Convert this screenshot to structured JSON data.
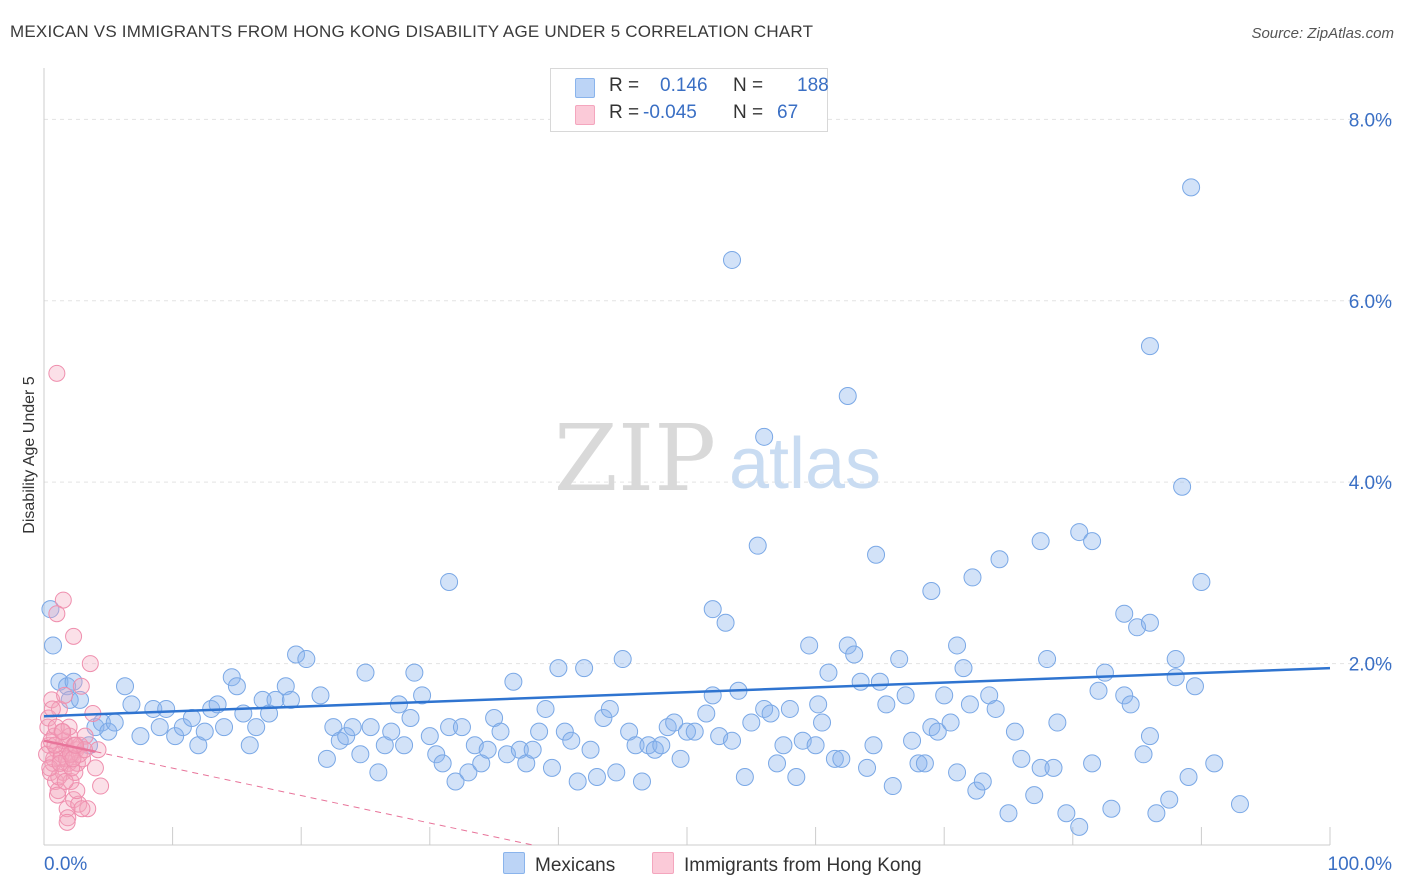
{
  "title": "MEXICAN VS IMMIGRANTS FROM HONG KONG DISABILITY AGE UNDER 5 CORRELATION CHART",
  "source": "Source: ZipAtlas.com",
  "watermark": {
    "zip": "ZIP",
    "atlas": "atlas"
  },
  "legend_top": {
    "rows": [
      {
        "r_label": "R =",
        "r_value": "0.146",
        "n_label": "N =",
        "n_value": "188"
      },
      {
        "r_label": "R =",
        "r_value": "-0.045",
        "n_label": "N =",
        "n_value": "67"
      }
    ]
  },
  "bottom_legend": {
    "mexicans": "Mexicans",
    "hongkong": "Immigrants from Hong Kong"
  },
  "colors": {
    "blue": "#8ab4ec",
    "blue_line": "#2f74d0",
    "pink": "#f4a6be",
    "pink_line": "#e8749a",
    "axis_label": "#3a6fc4"
  },
  "chart_data": {
    "type": "scatter",
    "title": "MEXICAN VS IMMIGRANTS FROM HONG KONG DISABILITY AGE UNDER 5 CORRELATION CHART",
    "xlabel": "",
    "ylabel": "Disability Age Under 5",
    "xlim": [
      0,
      100
    ],
    "ylim": [
      0,
      8.5
    ],
    "x_tick_labels": [
      "0.0%",
      "100.0%"
    ],
    "y_ticks": [
      2,
      4,
      6,
      8
    ],
    "y_tick_labels": [
      "2.0%",
      "4.0%",
      "6.0%",
      "8.0%"
    ],
    "grid": true,
    "series": [
      {
        "name": "Mexicans",
        "trend": {
          "x": [
            0,
            100
          ],
          "y": [
            1.42,
            1.95
          ]
        },
        "points": [
          [
            0.5,
            2.6
          ],
          [
            0.7,
            2.2
          ],
          [
            1.2,
            1.8
          ],
          [
            1.8,
            1.75
          ],
          [
            2.3,
            1.8
          ],
          [
            2.0,
            1.6
          ],
          [
            2.8,
            1.6
          ],
          [
            3.5,
            1.1
          ],
          [
            4.0,
            1.3
          ],
          [
            4.5,
            1.35
          ],
          [
            5.0,
            1.25
          ],
          [
            5.5,
            1.35
          ],
          [
            6.3,
            1.75
          ],
          [
            6.8,
            1.55
          ],
          [
            7.5,
            1.2
          ],
          [
            8.5,
            1.5
          ],
          [
            9.0,
            1.3
          ],
          [
            9.5,
            1.5
          ],
          [
            10.2,
            1.2
          ],
          [
            10.8,
            1.3
          ],
          [
            11.5,
            1.4
          ],
          [
            12.0,
            1.1
          ],
          [
            12.5,
            1.25
          ],
          [
            13.0,
            1.5
          ],
          [
            13.5,
            1.55
          ],
          [
            14.0,
            1.3
          ],
          [
            14.6,
            1.85
          ],
          [
            15.0,
            1.75
          ],
          [
            15.5,
            1.45
          ],
          [
            16.0,
            1.1
          ],
          [
            16.5,
            1.3
          ],
          [
            17.0,
            1.6
          ],
          [
            17.5,
            1.45
          ],
          [
            18.0,
            1.6
          ],
          [
            18.8,
            1.75
          ],
          [
            19.2,
            1.6
          ],
          [
            19.6,
            2.1
          ],
          [
            20.4,
            2.05
          ],
          [
            21.5,
            1.65
          ],
          [
            22.0,
            0.95
          ],
          [
            22.5,
            1.3
          ],
          [
            23.0,
            1.15
          ],
          [
            23.5,
            1.2
          ],
          [
            24.0,
            1.3
          ],
          [
            24.6,
            1.0
          ],
          [
            25.0,
            1.9
          ],
          [
            25.4,
            1.3
          ],
          [
            26.0,
            0.8
          ],
          [
            26.5,
            1.1
          ],
          [
            27.0,
            1.25
          ],
          [
            27.6,
            1.55
          ],
          [
            28.0,
            1.1
          ],
          [
            28.5,
            1.4
          ],
          [
            28.8,
            1.9
          ],
          [
            29.4,
            1.65
          ],
          [
            30.0,
            1.2
          ],
          [
            30.5,
            1.0
          ],
          [
            31.0,
            0.9
          ],
          [
            31.5,
            1.3
          ],
          [
            32.0,
            0.7
          ],
          [
            32.5,
            1.3
          ],
          [
            33.0,
            0.8
          ],
          [
            33.5,
            1.1
          ],
          [
            34.0,
            0.9
          ],
          [
            34.5,
            1.05
          ],
          [
            35.0,
            1.4
          ],
          [
            35.5,
            1.25
          ],
          [
            36.0,
            1.0
          ],
          [
            37.0,
            1.05
          ],
          [
            36.5,
            1.8
          ],
          [
            37.5,
            0.9
          ],
          [
            38.0,
            1.05
          ],
          [
            38.5,
            1.25
          ],
          [
            39.0,
            1.5
          ],
          [
            39.5,
            0.85
          ],
          [
            40.0,
            1.95
          ],
          [
            40.5,
            1.25
          ],
          [
            41.0,
            1.15
          ],
          [
            41.5,
            0.7
          ],
          [
            42.0,
            1.95
          ],
          [
            42.5,
            1.05
          ],
          [
            43.0,
            0.75
          ],
          [
            43.5,
            1.4
          ],
          [
            44.0,
            1.5
          ],
          [
            44.5,
            0.8
          ],
          [
            45.0,
            2.05
          ],
          [
            45.5,
            1.25
          ],
          [
            46.0,
            1.1
          ],
          [
            46.5,
            0.7
          ],
          [
            47.0,
            1.1
          ],
          [
            47.5,
            1.05
          ],
          [
            48.0,
            1.1
          ],
          [
            48.5,
            1.3
          ],
          [
            49.0,
            1.35
          ],
          [
            49.5,
            0.95
          ],
          [
            50.0,
            1.25
          ],
          [
            50.6,
            1.25
          ],
          [
            51.5,
            1.45
          ],
          [
            52.0,
            1.65
          ],
          [
            52.5,
            1.2
          ],
          [
            53.5,
            1.15
          ],
          [
            54.0,
            1.7
          ],
          [
            54.5,
            0.75
          ],
          [
            55.0,
            1.35
          ],
          [
            56.0,
            1.5
          ],
          [
            56.5,
            1.45
          ],
          [
            57.0,
            0.9
          ],
          [
            57.5,
            1.1
          ],
          [
            58.0,
            1.5
          ],
          [
            58.5,
            0.75
          ],
          [
            59.0,
            1.15
          ],
          [
            59.5,
            2.2
          ],
          [
            60.0,
            1.1
          ],
          [
            60.5,
            1.35
          ],
          [
            61.0,
            1.9
          ],
          [
            61.5,
            0.95
          ],
          [
            62.0,
            0.95
          ],
          [
            62.5,
            2.2
          ],
          [
            63.0,
            2.1
          ],
          [
            63.5,
            1.8
          ],
          [
            64.0,
            0.85
          ],
          [
            64.5,
            1.1
          ],
          [
            65.0,
            1.8
          ],
          [
            65.5,
            1.55
          ],
          [
            66.0,
            0.65
          ],
          [
            66.5,
            2.05
          ],
          [
            67.0,
            1.65
          ],
          [
            67.5,
            1.15
          ],
          [
            68.0,
            0.9
          ],
          [
            68.5,
            0.9
          ],
          [
            69.0,
            1.3
          ],
          [
            69.5,
            1.25
          ],
          [
            70.0,
            1.65
          ],
          [
            70.5,
            1.35
          ],
          [
            71.0,
            0.8
          ],
          [
            71.5,
            1.95
          ],
          [
            72.0,
            1.55
          ],
          [
            72.5,
            0.6
          ],
          [
            73.0,
            0.7
          ],
          [
            73.5,
            1.65
          ],
          [
            74.0,
            1.5
          ],
          [
            75.0,
            0.35
          ],
          [
            75.5,
            1.25
          ],
          [
            76.0,
            0.95
          ],
          [
            77.0,
            0.55
          ],
          [
            77.5,
            0.85
          ],
          [
            78.0,
            2.05
          ],
          [
            78.5,
            0.85
          ],
          [
            79.5,
            0.35
          ],
          [
            80.5,
            0.2
          ],
          [
            81.5,
            0.9
          ],
          [
            82.0,
            1.7
          ],
          [
            82.5,
            1.9
          ],
          [
            83.0,
            0.4
          ],
          [
            84.0,
            1.65
          ],
          [
            84.5,
            1.55
          ],
          [
            53.0,
            2.45
          ],
          [
            52.0,
            2.6
          ],
          [
            31.5,
            2.9
          ],
          [
            69.0,
            2.8
          ],
          [
            71.0,
            2.2
          ],
          [
            72.2,
            2.95
          ],
          [
            55.5,
            3.3
          ],
          [
            64.7,
            3.2
          ],
          [
            74.3,
            3.15
          ],
          [
            77.5,
            3.35
          ],
          [
            80.5,
            3.45
          ],
          [
            81.5,
            3.35
          ],
          [
            84.0,
            2.55
          ],
          [
            85.0,
            2.4
          ],
          [
            88.0,
            2.05
          ],
          [
            89.5,
            1.75
          ],
          [
            90.0,
            2.9
          ],
          [
            86.0,
            1.2
          ],
          [
            86.5,
            0.35
          ],
          [
            87.5,
            0.5
          ],
          [
            91.0,
            0.9
          ],
          [
            93.0,
            0.45
          ],
          [
            89.0,
            0.75
          ],
          [
            85.5,
            1.0
          ],
          [
            78.8,
            1.35
          ],
          [
            60.2,
            1.55
          ],
          [
            88.0,
            1.85
          ],
          [
            86.0,
            2.45
          ],
          [
            88.5,
            3.95
          ],
          [
            62.5,
            4.95
          ],
          [
            56.0,
            4.5
          ],
          [
            53.5,
            6.45
          ],
          [
            89.2,
            7.25
          ],
          [
            86.0,
            5.5
          ]
        ]
      },
      {
        "name": "Immigrants from Hong Kong",
        "trend": {
          "x": [
            0,
            38
          ],
          "y": [
            1.15,
            0.0
          ]
        },
        "points": [
          [
            0.3,
            1.3
          ],
          [
            0.4,
            1.1
          ],
          [
            0.5,
            0.8
          ],
          [
            0.6,
            1.6
          ],
          [
            0.7,
            0.9
          ],
          [
            0.8,
            1.2
          ],
          [
            0.9,
            0.7
          ],
          [
            1.0,
            1.05
          ],
          [
            1.1,
            0.6
          ],
          [
            1.2,
            1.5
          ],
          [
            1.3,
            0.95
          ],
          [
            1.4,
            1.25
          ],
          [
            1.5,
            0.8
          ],
          [
            1.6,
            1.65
          ],
          [
            1.7,
            1.1
          ],
          [
            1.8,
            0.4
          ],
          [
            1.9,
            0.9
          ],
          [
            2.0,
            1.2
          ],
          [
            2.1,
            0.7
          ],
          [
            2.2,
            1.0
          ],
          [
            2.3,
            0.5
          ],
          [
            2.4,
            0.8
          ],
          [
            2.5,
            1.05
          ],
          [
            2.6,
            0.9
          ],
          [
            2.7,
            0.45
          ],
          [
            2.8,
            1.1
          ],
          [
            2.9,
            1.75
          ],
          [
            3.0,
            0.95
          ],
          [
            3.2,
            1.2
          ],
          [
            3.4,
            0.4
          ],
          [
            3.6,
            2.0
          ],
          [
            3.8,
            1.45
          ],
          [
            4.0,
            0.85
          ],
          [
            4.2,
            1.05
          ],
          [
            4.4,
            0.65
          ],
          [
            0.2,
            1.0
          ],
          [
            0.35,
            1.4
          ],
          [
            0.55,
            1.15
          ],
          [
            0.75,
            0.95
          ],
          [
            0.95,
            1.3
          ],
          [
            1.15,
            0.75
          ],
          [
            1.35,
            1.0
          ],
          [
            1.55,
            1.15
          ],
          [
            1.75,
            0.95
          ],
          [
            1.95,
            1.3
          ],
          [
            2.15,
            0.85
          ],
          [
            2.35,
            1.1
          ],
          [
            2.55,
            0.6
          ],
          [
            2.75,
            1.0
          ],
          [
            2.95,
            0.4
          ],
          [
            3.15,
            1.05
          ],
          [
            0.45,
            0.85
          ],
          [
            0.65,
            1.5
          ],
          [
            0.85,
            1.1
          ],
          [
            1.05,
            0.55
          ],
          [
            1.25,
            0.9
          ],
          [
            1.45,
            1.25
          ],
          [
            1.65,
            0.7
          ],
          [
            1.85,
            0.3
          ],
          [
            2.05,
            1.0
          ],
          [
            2.25,
            0.95
          ],
          [
            2.45,
            1.1
          ],
          [
            1.0,
            5.2
          ],
          [
            1.5,
            2.7
          ],
          [
            1.0,
            2.55
          ],
          [
            2.3,
            2.3
          ],
          [
            1.8,
            0.25
          ]
        ]
      }
    ]
  }
}
